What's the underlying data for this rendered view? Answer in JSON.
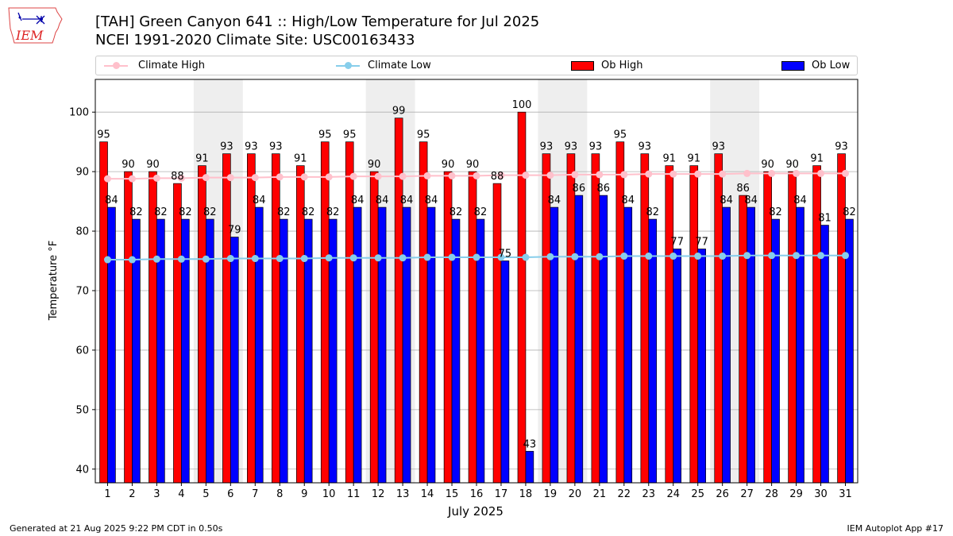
{
  "header": {
    "title_line1": "[TAH] Green Canyon 641 :: High/Low Temperature for Jul 2025",
    "title_line2": "NCEI 1991-2020 Climate Site: USC00163433",
    "logo_text": "IEM"
  },
  "footer": {
    "left": "Generated at 21 Aug 2025 9:22 PM CDT in 0.50s",
    "right": "IEM Autoplot App #17"
  },
  "colors": {
    "ob_high": "#ff0000",
    "ob_low": "#0000ff",
    "climate_high": "#ffc0cb",
    "climate_low": "#87ceeb",
    "weekend_shade": "#eeeeee",
    "grid": "#b0b0b0"
  },
  "legend": {
    "placement": "top, horizontal",
    "entries": [
      "Climate High",
      "Climate Low",
      "Ob High",
      "Ob Low"
    ]
  },
  "chart_data": {
    "type": "bar",
    "xlabel": "July 2025",
    "ylabel": "Temperature °F",
    "ylim": [
      37.7,
      105.5
    ],
    "yticks": [
      40,
      50,
      60,
      70,
      80,
      90,
      100
    ],
    "grid": true,
    "x": [
      1,
      2,
      3,
      4,
      5,
      6,
      7,
      8,
      9,
      10,
      11,
      12,
      13,
      14,
      15,
      16,
      17,
      18,
      19,
      20,
      21,
      22,
      23,
      24,
      25,
      26,
      27,
      28,
      29,
      30,
      31
    ],
    "shaded_days": [
      [
        5,
        6
      ],
      [
        12,
        13
      ],
      [
        19,
        20
      ],
      [
        26,
        27
      ]
    ],
    "series": [
      {
        "name": "Ob High",
        "kind": "bar",
        "values": [
          95,
          90,
          90,
          88,
          91,
          93,
          93,
          93,
          91,
          95,
          95,
          90,
          99,
          95,
          90,
          90,
          88,
          100,
          93,
          93,
          93,
          95,
          93,
          91,
          91,
          93,
          86,
          90,
          90,
          91,
          93
        ],
        "labels": [
          "95",
          "90",
          "90",
          "88",
          "91",
          "93",
          "93",
          "93",
          "91",
          "95",
          "95",
          "90",
          "99",
          "95",
          "90",
          "90",
          "88",
          "100",
          "93",
          "93",
          "93",
          "95",
          "93",
          "91",
          "91",
          "93",
          "86",
          "90",
          "90",
          "91",
          "93"
        ]
      },
      {
        "name": "Ob Low",
        "kind": "bar",
        "values": [
          84,
          82,
          82,
          82,
          82,
          79,
          84,
          82,
          82,
          82,
          84,
          84,
          84,
          84,
          82,
          82,
          75,
          43,
          84,
          86,
          86,
          84,
          82,
          77,
          77,
          84,
          84,
          82,
          84,
          81,
          82
        ],
        "labels": [
          "84",
          "82",
          "82",
          "82",
          "82",
          "79",
          "84",
          "82",
          "82",
          "82",
          "84",
          "84",
          "84",
          "84",
          "82",
          "82",
          "75",
          "43",
          "84",
          "86",
          "86",
          "84",
          "82",
          "77",
          "77",
          "84",
          "84",
          "82",
          "84",
          "81",
          "82"
        ]
      },
      {
        "name": "Climate High",
        "kind": "line",
        "values": [
          88.8,
          88.8,
          88.9,
          88.9,
          89.0,
          89.0,
          89.0,
          89.1,
          89.1,
          89.1,
          89.2,
          89.2,
          89.2,
          89.3,
          89.3,
          89.3,
          89.4,
          89.4,
          89.4,
          89.5,
          89.5,
          89.5,
          89.6,
          89.6,
          89.6,
          89.6,
          89.7,
          89.7,
          89.7,
          89.7,
          89.7
        ]
      },
      {
        "name": "Climate Low",
        "kind": "line",
        "values": [
          75.2,
          75.2,
          75.3,
          75.3,
          75.3,
          75.4,
          75.4,
          75.4,
          75.4,
          75.5,
          75.5,
          75.5,
          75.5,
          75.6,
          75.6,
          75.6,
          75.6,
          75.6,
          75.7,
          75.7,
          75.7,
          75.8,
          75.8,
          75.8,
          75.8,
          75.8,
          75.9,
          75.9,
          75.9,
          75.9,
          75.9
        ]
      }
    ]
  }
}
